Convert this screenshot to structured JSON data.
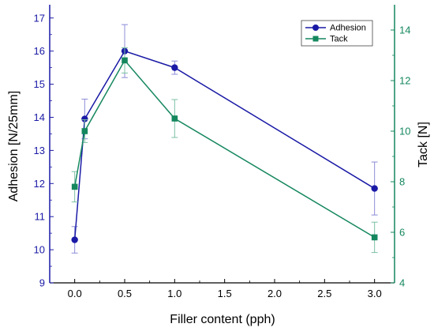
{
  "chart_data": {
    "type": "line",
    "categories": [
      "0.0",
      "0.5",
      "1.0",
      "1.5",
      "2.0",
      "2.5",
      "3.0"
    ],
    "xlabel": "Filler content (pph)",
    "ylabel": "Adhesion [N/25mm]",
    "y2label": "Tack [N]",
    "xlim": [
      -0.25,
      3.2
    ],
    "ylim": [
      9,
      17.4
    ],
    "y2lim": [
      4,
      15
    ],
    "xticks": [
      0.0,
      0.5,
      1.0,
      1.5,
      2.0,
      2.5,
      3.0
    ],
    "xtick_labels": [
      "0.0",
      "0.5",
      "1.0",
      "1.5",
      "2.0",
      "2.5",
      "3.0"
    ],
    "yticks": [
      9,
      10,
      11,
      12,
      13,
      14,
      15,
      16,
      17
    ],
    "ytick_labels": [
      "9",
      "10",
      "11",
      "12",
      "13",
      "14",
      "15",
      "16",
      "17"
    ],
    "y2ticks": [
      4,
      6,
      8,
      10,
      12,
      14
    ],
    "y2tick_labels": [
      "4",
      "6",
      "8",
      "10",
      "12",
      "14"
    ],
    "grid": false,
    "legend_position": "top-right",
    "series": [
      {
        "name": "Adhesion",
        "axis": "left",
        "marker": "circle",
        "color": "#1a1aa6",
        "x": [
          0.0,
          0.1,
          0.5,
          1.0,
          3.0
        ],
        "y": [
          10.3,
          13.95,
          16.0,
          15.5,
          11.85
        ],
        "err": [
          0.4,
          0.6,
          0.8,
          0.2,
          0.8
        ]
      },
      {
        "name": "Tack",
        "axis": "right",
        "marker": "square",
        "color": "#15875e",
        "x": [
          0.0,
          0.1,
          0.5,
          1.0,
          3.0
        ],
        "y": [
          7.8,
          10.0,
          12.8,
          10.5,
          5.8
        ],
        "err": [
          0.6,
          0.45,
          0.5,
          0.75,
          0.6
        ]
      }
    ]
  },
  "colors": {
    "left_axis": "#1a1aa6",
    "right_axis": "#15875e",
    "bottom_axis": "#000000",
    "text": "#000000"
  }
}
